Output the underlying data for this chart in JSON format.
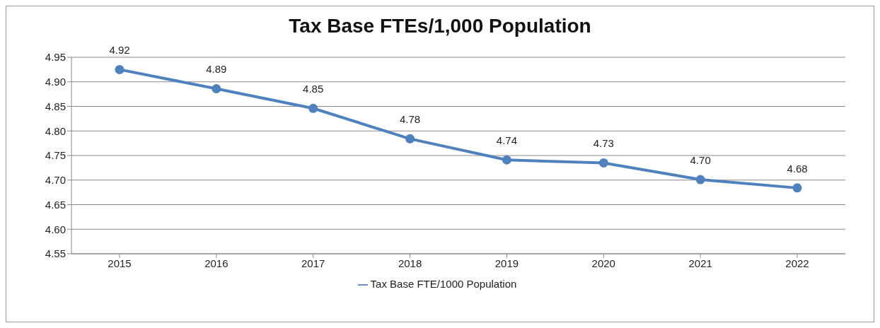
{
  "chart_data": {
    "type": "line",
    "title": "Tax Base FTEs/1,000 Population",
    "categories": [
      "2015",
      "2016",
      "2017",
      "2018",
      "2019",
      "2020",
      "2021",
      "2022"
    ],
    "series": [
      {
        "name": "Tax Base FTE/1000 Population",
        "color": "#4f81bd",
        "values": [
          4.925,
          4.886,
          4.846,
          4.784,
          4.741,
          4.735,
          4.701,
          4.684
        ],
        "value_labels": [
          "4.92",
          "4.89",
          "4.85",
          "4.78",
          "4.74",
          "4.73",
          "4.70",
          "4.68"
        ]
      }
    ],
    "ylim": [
      4.55,
      4.95
    ],
    "yticks": [
      {
        "value": 4.55,
        "label": "4.55"
      },
      {
        "value": 4.6,
        "label": "4.60"
      },
      {
        "value": 4.65,
        "label": "4.65"
      },
      {
        "value": 4.7,
        "label": "4.70"
      },
      {
        "value": 4.75,
        "label": "4.75"
      },
      {
        "value": 4.8,
        "label": "4.80"
      },
      {
        "value": 4.85,
        "label": "4.85"
      },
      {
        "value": 4.9,
        "label": "4.90"
      },
      {
        "value": 4.95,
        "label": "4.95"
      }
    ],
    "grid": "y",
    "legend": "bottom",
    "marker": "circle",
    "line_style": "solid"
  }
}
